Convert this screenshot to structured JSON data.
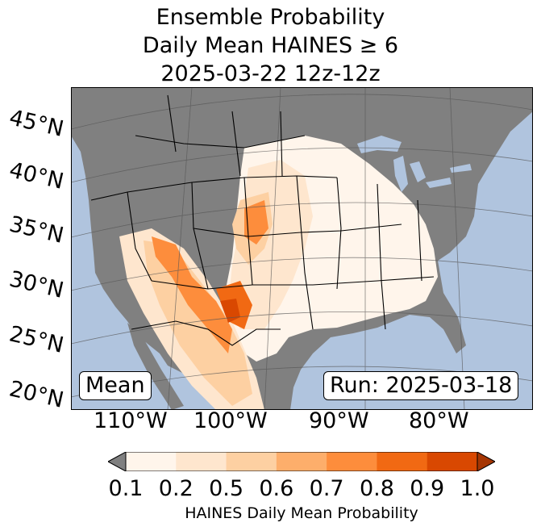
{
  "title": {
    "line1": "Ensemble Probability",
    "line2": "Daily Mean HAINES ≥ 6",
    "line3": "2025-03-22 12z-12z"
  },
  "map": {
    "lat_labels": [
      "45°N",
      "40°N",
      "35°N",
      "30°N",
      "25°N",
      "20°N"
    ],
    "lon_labels": [
      "110°W",
      "100°W",
      "90°W",
      "80°W"
    ],
    "mean_label": "Mean",
    "run_label": "Run: 2025-03-18",
    "colors": {
      "ocean": "#b0c4de",
      "land_nodata": "#808080",
      "lakes": "#b0c4de"
    }
  },
  "colorbar": {
    "label": "HAINES Daily Mean Probability",
    "ticks": [
      "0.1",
      "0.2",
      "0.5",
      "0.6",
      "0.7",
      "0.8",
      "0.9",
      "1.0"
    ],
    "colors": [
      "#fff5eb",
      "#fee6ce",
      "#fdd0a2",
      "#fdae6b",
      "#fd8d3c",
      "#f16913",
      "#d94801"
    ],
    "under_color": "#808080",
    "over_color": "#a63603"
  }
}
